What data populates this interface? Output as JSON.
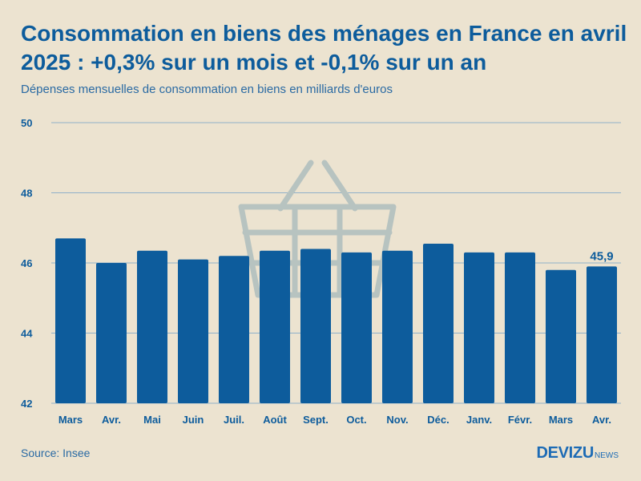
{
  "header": {
    "title": "Consommation en biens des ménages en France en avril 2025 : +0,3% sur un mois et -0,1% sur un an",
    "subtitle": "Dépenses mensuelles de consommation en biens en milliards d'euros"
  },
  "chart_data": {
    "type": "bar",
    "title": "Consommation en biens des ménages en France en avril 2025 : +0,3% sur un mois et -0,1% sur un an",
    "subtitle": "Dépenses mensuelles de consommation en biens en milliards d'euros",
    "categories": [
      "Mars",
      "Avr.",
      "Mai",
      "Juin",
      "Juil.",
      "Août",
      "Sept.",
      "Oct.",
      "Nov.",
      "Déc.",
      "Janv.",
      "Févr.",
      "Mars",
      "Avr."
    ],
    "values": [
      46.7,
      46.0,
      46.35,
      46.1,
      46.2,
      46.35,
      46.4,
      46.3,
      46.35,
      46.55,
      46.3,
      46.3,
      45.8,
      45.9
    ],
    "ylim": [
      42,
      50
    ],
    "yticks": [
      "42",
      "44",
      "46",
      "48",
      "50"
    ],
    "ytick_values": [
      42,
      44,
      46,
      48,
      50
    ],
    "xlabel": "",
    "ylabel": "",
    "grid": true,
    "data_labels": [
      {
        "index": 13,
        "text": "45,9"
      }
    ],
    "colors": {
      "bar": "#0d5c9c",
      "grid": "#8fb0c9",
      "label": "#0d5c9c",
      "background": "#ece3d0",
      "watermark": "#b7c3c0"
    }
  },
  "watermark": {
    "icon": "shopping-basket-icon"
  },
  "footer": {
    "source": "Source: Insee",
    "brand": "DEVIZU",
    "brand_suffix": "NEWS"
  }
}
